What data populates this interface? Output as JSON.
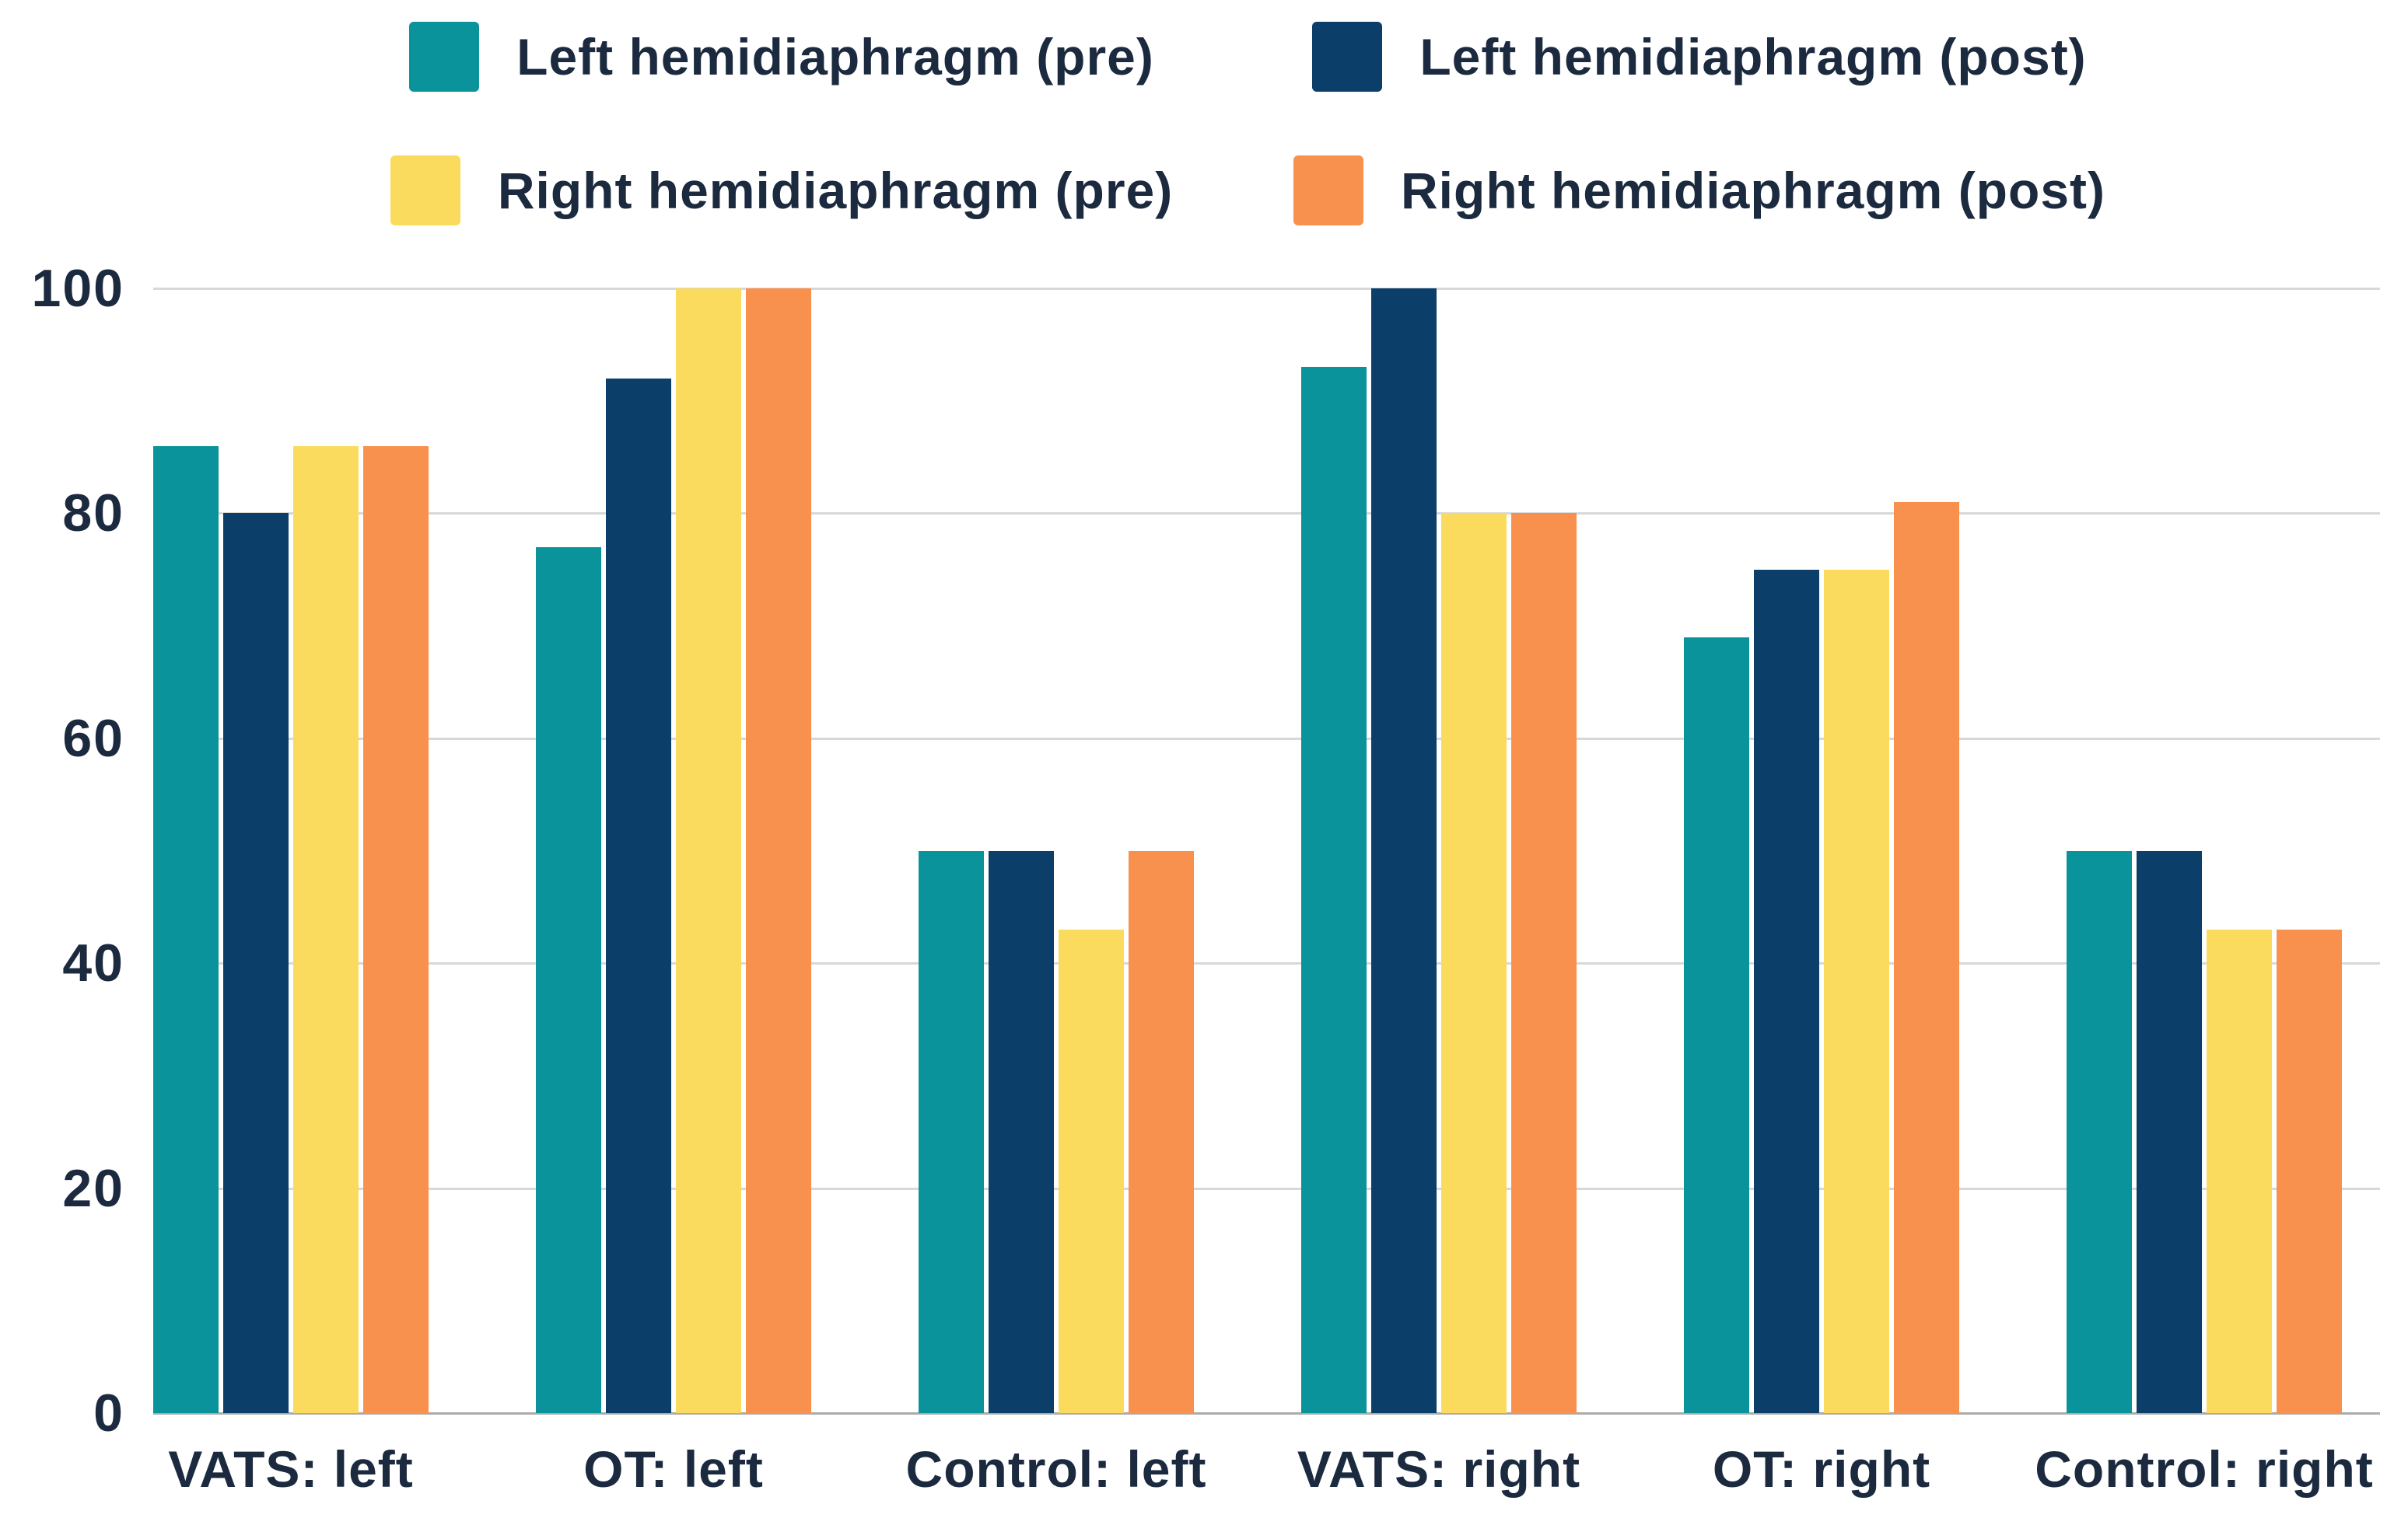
{
  "chart_data": {
    "type": "bar",
    "title": "",
    "xlabel": "",
    "ylabel": "",
    "ylim": [
      0,
      100
    ],
    "yticks": [
      0,
      20,
      40,
      60,
      80,
      100
    ],
    "grid": true,
    "legend_position": "top",
    "categories": [
      "VATS: left",
      "OT: left",
      "Control: left",
      "VATS: right",
      "OT: right",
      "Control: right"
    ],
    "series": [
      {
        "name": "Left hemidiaphragm (pre)",
        "color": "#0A939B",
        "values": [
          86,
          77,
          50,
          93,
          69,
          50
        ]
      },
      {
        "name": "Left hemidiaphragm (post)",
        "color": "#0B3F69",
        "values": [
          80,
          92,
          50,
          100,
          75,
          50
        ]
      },
      {
        "name": "Right hemidiaphragm (pre)",
        "color": "#FBDB5E",
        "values": [
          86,
          100,
          43,
          80,
          75,
          43
        ]
      },
      {
        "name": "Right hemidiaphragm (post)",
        "color": "#F9914E",
        "values": [
          86,
          100,
          50,
          80,
          81,
          43
        ]
      }
    ]
  },
  "colors": {
    "text": "#1B2A3E",
    "gridline": "#D8D8D8",
    "baseline": "#ABABAB",
    "background": "#FFFFFF"
  }
}
